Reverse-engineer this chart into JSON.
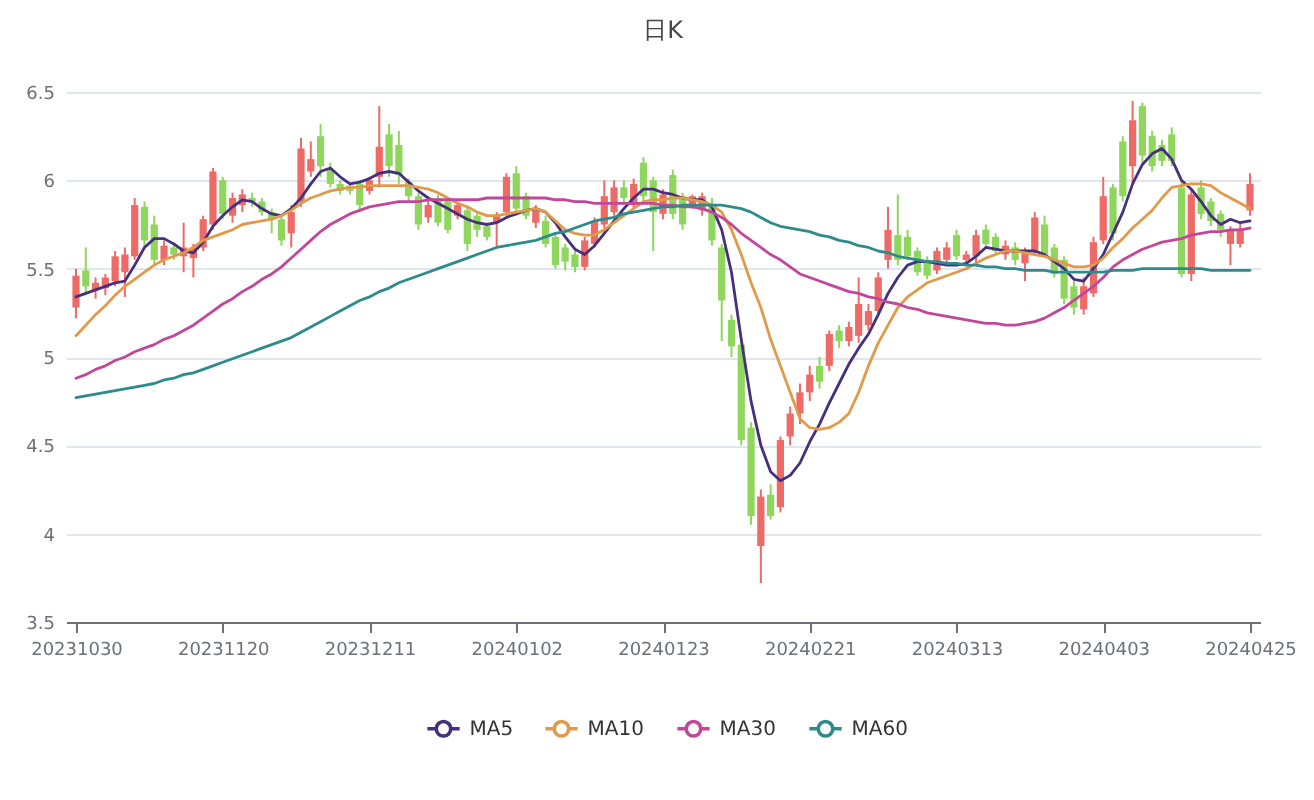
{
  "chart_data": {
    "type": "candlestick",
    "title": "日K",
    "categories": [
      "20231030",
      null,
      null,
      null,
      null,
      null,
      null,
      null,
      null,
      null,
      null,
      null,
      null,
      null,
      null,
      "20231120",
      null,
      null,
      null,
      null,
      null,
      null,
      null,
      null,
      null,
      null,
      null,
      null,
      null,
      null,
      "20231211",
      null,
      null,
      null,
      null,
      null,
      null,
      null,
      null,
      null,
      null,
      null,
      null,
      null,
      null,
      "20240102",
      null,
      null,
      null,
      null,
      null,
      null,
      null,
      null,
      null,
      null,
      null,
      null,
      null,
      null,
      "20240123",
      null,
      null,
      null,
      null,
      null,
      null,
      null,
      null,
      null,
      null,
      null,
      null,
      null,
      null,
      "20240221",
      null,
      null,
      null,
      null,
      null,
      null,
      null,
      null,
      null,
      null,
      null,
      null,
      null,
      null,
      "20240313",
      null,
      null,
      null,
      null,
      null,
      null,
      null,
      null,
      null,
      null,
      null,
      null,
      null,
      null,
      "20240403",
      null,
      null,
      null,
      null,
      null,
      null,
      null,
      null,
      null,
      null,
      null,
      null,
      null,
      null,
      "20240425"
    ],
    "ohlc": [
      [
        5.28,
        5.5,
        5.22,
        5.46
      ],
      [
        5.49,
        5.62,
        5.36,
        5.4
      ],
      [
        5.38,
        5.45,
        5.33,
        5.42
      ],
      [
        5.39,
        5.47,
        5.35,
        5.45
      ],
      [
        5.43,
        5.6,
        5.4,
        5.57
      ],
      [
        5.48,
        5.62,
        5.34,
        5.58
      ],
      [
        5.57,
        5.9,
        5.55,
        5.86
      ],
      [
        5.85,
        5.88,
        5.62,
        5.66
      ],
      [
        5.75,
        5.8,
        5.52,
        5.55
      ],
      [
        5.55,
        5.66,
        5.52,
        5.63
      ],
      [
        5.62,
        5.65,
        5.55,
        5.58
      ],
      [
        5.57,
        5.76,
        5.48,
        5.62
      ],
      [
        5.56,
        5.64,
        5.45,
        5.62
      ],
      [
        5.62,
        5.8,
        5.6,
        5.78
      ],
      [
        5.75,
        6.07,
        5.72,
        6.05
      ],
      [
        6.0,
        6.02,
        5.78,
        5.81
      ],
      [
        5.8,
        5.93,
        5.76,
        5.9
      ],
      [
        5.86,
        5.95,
        5.82,
        5.92
      ],
      [
        5.9,
        5.93,
        5.85,
        5.88
      ],
      [
        5.88,
        5.9,
        5.8,
        5.82
      ],
      [
        5.82,
        5.84,
        5.7,
        5.78
      ],
      [
        5.78,
        5.8,
        5.63,
        5.66
      ],
      [
        5.7,
        5.86,
        5.62,
        5.82
      ],
      [
        5.88,
        6.24,
        5.85,
        6.18
      ],
      [
        6.05,
        6.22,
        6.02,
        6.12
      ],
      [
        6.25,
        6.32,
        6.02,
        6.08
      ],
      [
        6.06,
        6.1,
        5.96,
        5.98
      ],
      [
        5.98,
        6.0,
        5.92,
        5.94
      ],
      [
        5.97,
        5.98,
        5.92,
        5.94
      ],
      [
        5.98,
        6.0,
        5.82,
        5.86
      ],
      [
        5.94,
        6.02,
        5.92,
        6.0
      ],
      [
        6.02,
        6.42,
        5.96,
        6.19
      ],
      [
        6.26,
        6.32,
        6.02,
        6.08
      ],
      [
        6.2,
        6.28,
        5.98,
        6.03
      ],
      [
        5.99,
        6.01,
        5.88,
        5.91
      ],
      [
        5.91,
        5.93,
        5.72,
        5.75
      ],
      [
        5.79,
        5.9,
        5.76,
        5.86
      ],
      [
        5.9,
        5.92,
        5.74,
        5.76
      ],
      [
        5.88,
        5.9,
        5.7,
        5.72
      ],
      [
        5.8,
        5.88,
        5.78,
        5.86
      ],
      [
        5.83,
        5.85,
        5.6,
        5.64
      ],
      [
        5.8,
        5.82,
        5.68,
        5.72
      ],
      [
        5.74,
        5.76,
        5.66,
        5.68
      ],
      [
        5.76,
        5.82,
        5.62,
        5.8
      ],
      [
        5.82,
        6.04,
        5.8,
        6.02
      ],
      [
        6.04,
        6.08,
        5.8,
        5.84
      ],
      [
        5.91,
        5.93,
        5.78,
        5.8
      ],
      [
        5.76,
        5.86,
        5.73,
        5.83
      ],
      [
        5.77,
        5.8,
        5.62,
        5.64
      ],
      [
        5.68,
        5.7,
        5.5,
        5.52
      ],
      [
        5.62,
        5.64,
        5.49,
        5.54
      ],
      [
        5.58,
        5.6,
        5.48,
        5.51
      ],
      [
        5.51,
        5.68,
        5.49,
        5.66
      ],
      [
        5.64,
        5.79,
        5.62,
        5.77
      ],
      [
        5.75,
        6.0,
        5.73,
        5.91
      ],
      [
        5.82,
        6.0,
        5.8,
        5.96
      ],
      [
        5.96,
        6.0,
        5.86,
        5.9
      ],
      [
        5.86,
        6.01,
        5.84,
        5.98
      ],
      [
        6.1,
        6.13,
        5.88,
        5.91
      ],
      [
        6.0,
        6.02,
        5.6,
        5.82
      ],
      [
        5.81,
        5.95,
        5.78,
        5.92
      ],
      [
        6.03,
        6.06,
        5.78,
        5.81
      ],
      [
        5.91,
        5.93,
        5.72,
        5.75
      ],
      [
        5.86,
        5.92,
        5.84,
        5.91
      ],
      [
        5.83,
        5.93,
        5.8,
        5.91
      ],
      [
        5.86,
        5.9,
        5.63,
        5.66
      ],
      [
        5.62,
        5.64,
        5.09,
        5.32
      ],
      [
        5.21,
        5.24,
        5.0,
        5.06
      ],
      [
        5.07,
        5.1,
        4.5,
        4.53
      ],
      [
        4.6,
        4.63,
        4.05,
        4.1
      ],
      [
        3.93,
        4.25,
        3.72,
        4.21
      ],
      [
        4.22,
        4.28,
        4.08,
        4.1
      ],
      [
        4.15,
        4.55,
        4.12,
        4.53
      ],
      [
        4.55,
        4.72,
        4.5,
        4.68
      ],
      [
        4.68,
        4.85,
        4.62,
        4.8
      ],
      [
        4.8,
        4.95,
        4.75,
        4.9
      ],
      [
        4.95,
        5.0,
        4.82,
        4.86
      ],
      [
        4.95,
        5.15,
        4.92,
        5.13
      ],
      [
        5.15,
        5.18,
        5.05,
        5.09
      ],
      [
        5.09,
        5.2,
        5.06,
        5.17
      ],
      [
        5.12,
        5.45,
        5.08,
        5.3
      ],
      [
        5.18,
        5.3,
        5.15,
        5.26
      ],
      [
        5.26,
        5.48,
        5.24,
        5.45
      ],
      [
        5.55,
        5.85,
        5.5,
        5.72
      ],
      [
        5.69,
        5.92,
        5.52,
        5.55
      ],
      [
        5.68,
        5.72,
        5.55,
        5.57
      ],
      [
        5.6,
        5.62,
        5.46,
        5.48
      ],
      [
        5.55,
        5.57,
        5.44,
        5.46
      ],
      [
        5.49,
        5.62,
        5.47,
        5.6
      ],
      [
        5.55,
        5.65,
        5.52,
        5.62
      ],
      [
        5.69,
        5.72,
        5.55,
        5.57
      ],
      [
        5.55,
        5.6,
        5.53,
        5.58
      ],
      [
        5.57,
        5.72,
        5.52,
        5.69
      ],
      [
        5.72,
        5.75,
        5.62,
        5.64
      ],
      [
        5.68,
        5.7,
        5.58,
        5.6
      ],
      [
        5.58,
        5.66,
        5.55,
        5.63
      ],
      [
        5.62,
        5.65,
        5.52,
        5.55
      ],
      [
        5.53,
        5.62,
        5.43,
        5.6
      ],
      [
        5.6,
        5.82,
        5.58,
        5.79
      ],
      [
        5.75,
        5.8,
        5.56,
        5.58
      ],
      [
        5.62,
        5.64,
        5.45,
        5.47
      ],
      [
        5.55,
        5.57,
        5.3,
        5.33
      ],
      [
        5.4,
        5.43,
        5.24,
        5.28
      ],
      [
        5.27,
        5.45,
        5.24,
        5.4
      ],
      [
        5.36,
        5.68,
        5.34,
        5.65
      ],
      [
        5.66,
        6.02,
        5.64,
        5.91
      ],
      [
        5.96,
        5.98,
        5.66,
        5.7
      ],
      [
        6.22,
        6.25,
        5.88,
        5.91
      ],
      [
        6.08,
        6.45,
        5.98,
        6.34
      ],
      [
        6.42,
        6.44,
        6.1,
        6.14
      ],
      [
        6.25,
        6.28,
        6.05,
        6.08
      ],
      [
        6.2,
        6.23,
        6.08,
        6.11
      ],
      [
        6.26,
        6.3,
        6.08,
        6.11
      ],
      [
        5.96,
        6.0,
        5.45,
        5.47
      ],
      [
        5.47,
        5.95,
        5.43,
        5.92
      ],
      [
        5.96,
        6.0,
        5.78,
        5.81
      ],
      [
        5.88,
        5.9,
        5.74,
        5.77
      ],
      [
        5.81,
        5.83,
        5.68,
        5.72
      ],
      [
        5.64,
        5.74,
        5.52,
        5.72
      ],
      [
        5.64,
        5.76,
        5.62,
        5.72
      ],
      [
        5.83,
        6.04,
        5.8,
        5.98
      ]
    ],
    "colors": [
      "#ee6a66",
      "#8fd65c",
      "#ee6a66",
      "#ee6a66",
      "#ee6a66",
      "#ee6a66",
      "#ee6a66",
      "#8fd65c",
      "#8fd65c",
      "#ee6a66",
      "#8fd65c",
      "#ee6a66",
      "#ee6a66",
      "#ee6a66",
      "#ee6a66",
      "#8fd65c",
      "#ee6a66",
      "#ee6a66",
      "#8fd65c",
      "#8fd65c",
      "#8fd65c",
      "#8fd65c",
      "#ee6a66",
      "#ee6a66",
      "#ee6a66",
      "#8fd65c",
      "#8fd65c",
      "#8fd65c",
      "#8fd65c",
      "#8fd65c",
      "#ee6a66",
      "#ee6a66",
      "#8fd65c",
      "#8fd65c",
      "#8fd65c",
      "#8fd65c",
      "#ee6a66",
      "#8fd65c",
      "#8fd65c",
      "#ee6a66",
      "#8fd65c",
      "#8fd65c",
      "#8fd65c",
      "#ee6a66",
      "#ee6a66",
      "#8fd65c",
      "#8fd65c",
      "#ee6a66",
      "#8fd65c",
      "#8fd65c",
      "#8fd65c",
      "#8fd65c",
      "#ee6a66",
      "#ee6a66",
      "#ee6a66",
      "#ee6a66",
      "#8fd65c",
      "#ee6a66",
      "#8fd65c",
      "#8fd65c",
      "#ee6a66",
      "#8fd65c",
      "#8fd65c",
      "#ee6a66",
      "#ee6a66",
      "#8fd65c",
      "#8fd65c",
      "#8fd65c",
      "#8fd65c",
      "#8fd65c",
      "#ee6a66",
      "#8fd65c",
      "#ee6a66",
      "#ee6a66",
      "#ee6a66",
      "#ee6a66",
      "#8fd65c",
      "#ee6a66",
      "#8fd65c",
      "#ee6a66",
      "#ee6a66",
      "#ee6a66",
      "#ee6a66",
      "#ee6a66",
      "#8fd65c",
      "#8fd65c",
      "#8fd65c",
      "#8fd65c",
      "#ee6a66",
      "#ee6a66",
      "#8fd65c",
      "#ee6a66",
      "#ee6a66",
      "#8fd65c",
      "#8fd65c",
      "#ee6a66",
      "#8fd65c",
      "#ee6a66",
      "#ee6a66",
      "#8fd65c",
      "#8fd65c",
      "#8fd65c",
      "#8fd65c",
      "#ee6a66",
      "#ee6a66",
      "#ee6a66",
      "#8fd65c",
      "#8fd65c",
      "#ee6a66",
      "#8fd65c",
      "#8fd65c",
      "#8fd65c",
      "#8fd65c",
      "#8fd65c",
      "#ee6a66",
      "#8fd65c",
      "#8fd65c",
      "#8fd65c",
      "#ee6a66",
      "#ee6a66",
      "#ee6a66"
    ],
    "series": [
      {
        "type": "line",
        "name": "MA5",
        "color": "#46307e",
        "values": [
          5.34,
          5.36,
          5.38,
          5.4,
          5.42,
          5.43,
          5.52,
          5.62,
          5.67,
          5.67,
          5.64,
          5.6,
          5.59,
          5.65,
          5.74,
          5.8,
          5.85,
          5.89,
          5.88,
          5.84,
          5.81,
          5.8,
          5.84,
          5.9,
          5.98,
          6.05,
          6.07,
          6.02,
          5.98,
          5.99,
          6.01,
          6.04,
          6.05,
          6.04,
          5.99,
          5.94,
          5.9,
          5.87,
          5.84,
          5.81,
          5.78,
          5.76,
          5.75,
          5.76,
          5.79,
          5.81,
          5.83,
          5.84,
          5.82,
          5.76,
          5.68,
          5.61,
          5.58,
          5.63,
          5.7,
          5.77,
          5.84,
          5.9,
          5.95,
          5.95,
          5.93,
          5.92,
          5.9,
          5.89,
          5.89,
          5.85,
          5.72,
          5.48,
          5.1,
          4.75,
          4.5,
          4.35,
          4.3,
          4.33,
          4.4,
          4.52,
          4.62,
          4.74,
          4.85,
          4.96,
          5.05,
          5.13,
          5.24,
          5.36,
          5.45,
          5.52,
          5.54,
          5.54,
          5.53,
          5.52,
          5.52,
          5.53,
          5.57,
          5.62,
          5.61,
          5.6,
          5.6,
          5.6,
          5.6,
          5.58,
          5.54,
          5.5,
          5.44,
          5.43,
          5.5,
          5.58,
          5.7,
          5.82,
          5.98,
          6.09,
          6.15,
          6.18,
          6.12,
          6.0,
          5.95,
          5.88,
          5.8,
          5.75,
          5.78,
          5.76,
          5.77
        ]
      },
      {
        "type": "line",
        "name": "MA10",
        "color": "#e09a4a",
        "values": [
          5.12,
          5.18,
          5.24,
          5.29,
          5.35,
          5.4,
          5.44,
          5.48,
          5.52,
          5.55,
          5.57,
          5.59,
          5.62,
          5.66,
          5.68,
          5.7,
          5.72,
          5.75,
          5.76,
          5.77,
          5.78,
          5.8,
          5.83,
          5.87,
          5.9,
          5.92,
          5.94,
          5.95,
          5.96,
          5.96,
          5.97,
          5.97,
          5.97,
          5.97,
          5.97,
          5.96,
          5.95,
          5.93,
          5.9,
          5.87,
          5.85,
          5.82,
          5.8,
          5.8,
          5.81,
          5.82,
          5.83,
          5.84,
          5.82,
          5.77,
          5.72,
          5.7,
          5.69,
          5.69,
          5.72,
          5.76,
          5.8,
          5.84,
          5.88,
          5.89,
          5.89,
          5.9,
          5.9,
          5.89,
          5.88,
          5.86,
          5.82,
          5.72,
          5.58,
          5.42,
          5.28,
          5.1,
          4.95,
          4.8,
          4.65,
          4.6,
          4.59,
          4.6,
          4.63,
          4.68,
          4.8,
          4.95,
          5.08,
          5.18,
          5.28,
          5.34,
          5.38,
          5.42,
          5.44,
          5.46,
          5.48,
          5.5,
          5.53,
          5.56,
          5.58,
          5.6,
          5.6,
          5.59,
          5.58,
          5.57,
          5.55,
          5.53,
          5.51,
          5.51,
          5.52,
          5.56,
          5.62,
          5.67,
          5.73,
          5.78,
          5.83,
          5.9,
          5.96,
          5.97,
          5.98,
          5.98,
          5.97,
          5.93,
          5.9,
          5.87,
          5.84
        ]
      },
      {
        "type": "line",
        "name": "MA30",
        "color": "#c2479a",
        "values": [
          4.88,
          4.9,
          4.93,
          4.95,
          4.98,
          5.0,
          5.03,
          5.05,
          5.07,
          5.1,
          5.12,
          5.15,
          5.18,
          5.22,
          5.26,
          5.3,
          5.33,
          5.37,
          5.4,
          5.44,
          5.47,
          5.51,
          5.56,
          5.61,
          5.66,
          5.71,
          5.75,
          5.78,
          5.81,
          5.83,
          5.85,
          5.86,
          5.87,
          5.88,
          5.88,
          5.88,
          5.89,
          5.89,
          5.89,
          5.89,
          5.89,
          5.89,
          5.9,
          5.9,
          5.9,
          5.9,
          5.9,
          5.9,
          5.9,
          5.89,
          5.89,
          5.88,
          5.88,
          5.87,
          5.87,
          5.87,
          5.87,
          5.87,
          5.87,
          5.87,
          5.86,
          5.86,
          5.85,
          5.85,
          5.84,
          5.82,
          5.79,
          5.75,
          5.7,
          5.66,
          5.62,
          5.58,
          5.55,
          5.51,
          5.47,
          5.45,
          5.43,
          5.41,
          5.39,
          5.37,
          5.36,
          5.34,
          5.33,
          5.31,
          5.3,
          5.28,
          5.27,
          5.25,
          5.24,
          5.23,
          5.22,
          5.21,
          5.2,
          5.19,
          5.19,
          5.18,
          5.18,
          5.19,
          5.2,
          5.22,
          5.25,
          5.28,
          5.32,
          5.36,
          5.4,
          5.45,
          5.51,
          5.55,
          5.58,
          5.61,
          5.63,
          5.65,
          5.66,
          5.67,
          5.69,
          5.7,
          5.71,
          5.71,
          5.72,
          5.72,
          5.73
        ]
      },
      {
        "type": "line",
        "name": "MA60",
        "color": "#2e8b8b",
        "values": [
          4.77,
          4.78,
          4.79,
          4.8,
          4.81,
          4.82,
          4.83,
          4.84,
          4.85,
          4.87,
          4.88,
          4.9,
          4.91,
          4.93,
          4.95,
          4.97,
          4.99,
          5.01,
          5.03,
          5.05,
          5.07,
          5.09,
          5.11,
          5.14,
          5.17,
          5.2,
          5.23,
          5.26,
          5.29,
          5.32,
          5.34,
          5.37,
          5.39,
          5.42,
          5.44,
          5.46,
          5.48,
          5.5,
          5.52,
          5.54,
          5.56,
          5.58,
          5.6,
          5.62,
          5.63,
          5.64,
          5.65,
          5.66,
          5.68,
          5.7,
          5.71,
          5.73,
          5.75,
          5.77,
          5.78,
          5.79,
          5.81,
          5.82,
          5.83,
          5.84,
          5.85,
          5.85,
          5.86,
          5.86,
          5.86,
          5.86,
          5.86,
          5.85,
          5.84,
          5.82,
          5.79,
          5.76,
          5.74,
          5.73,
          5.72,
          5.71,
          5.69,
          5.68,
          5.66,
          5.65,
          5.63,
          5.62,
          5.6,
          5.59,
          5.57,
          5.56,
          5.55,
          5.54,
          5.54,
          5.53,
          5.53,
          5.52,
          5.52,
          5.51,
          5.51,
          5.5,
          5.5,
          5.49,
          5.49,
          5.49,
          5.48,
          5.48,
          5.48,
          5.48,
          5.48,
          5.48,
          5.49,
          5.49,
          5.49,
          5.5,
          5.5,
          5.5,
          5.5,
          5.5,
          5.5,
          5.5,
          5.49,
          5.49,
          5.49,
          5.49,
          5.49
        ]
      }
    ],
    "ylim": [
      3.5,
      6.5
    ],
    "yticks": [
      3.5,
      4,
      4.5,
      5,
      5.5,
      6,
      6.5
    ],
    "grid": "y",
    "legend": "bottom"
  }
}
